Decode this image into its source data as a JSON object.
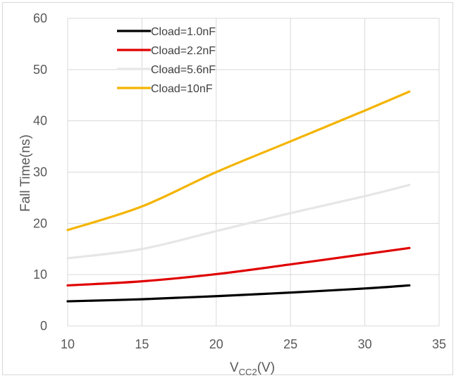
{
  "chart_data": {
    "type": "line",
    "title": "",
    "xlabel": "V",
    "xlabel_sub": "CC2",
    "xlabel_suffix": "(V)",
    "ylabel": "Fall Time(ns)",
    "xlim": [
      10,
      35
    ],
    "ylim": [
      0,
      60
    ],
    "xticks": [
      10,
      15,
      20,
      25,
      30,
      35
    ],
    "yticks": [
      0,
      10,
      20,
      30,
      40,
      50,
      60
    ],
    "grid": true,
    "legend_position": "top-left",
    "series": [
      {
        "name": "Cload=1.0nF",
        "color": "#000000",
        "x": [
          10,
          15,
          20,
          25,
          30,
          33
        ],
        "y": [
          4.8,
          5.2,
          5.8,
          6.5,
          7.3,
          7.9
        ]
      },
      {
        "name": "Cload=2.2nF",
        "color": "#e00000",
        "x": [
          10,
          15,
          20,
          25,
          30,
          33
        ],
        "y": [
          7.9,
          8.7,
          10.1,
          12.0,
          14.0,
          15.2
        ]
      },
      {
        "name": "Cload=5.6nF",
        "color": "#e6e6e6",
        "x": [
          10,
          15,
          20,
          25,
          30,
          33
        ],
        "y": [
          13.2,
          15.0,
          18.5,
          22.0,
          25.3,
          27.5
        ]
      },
      {
        "name": "Cload=10nF",
        "color": "#f4b400",
        "x": [
          10,
          15,
          20,
          25,
          30,
          33
        ],
        "y": [
          18.7,
          23.3,
          30.0,
          36.0,
          42.0,
          45.7
        ]
      }
    ]
  }
}
